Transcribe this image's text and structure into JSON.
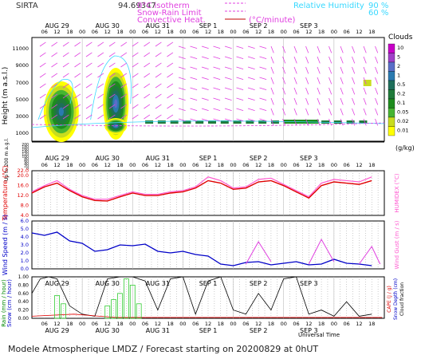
{
  "header": {
    "site": "SIRTA",
    "coords": "94.69347",
    "legend_isotherm": "0°C isotherm",
    "legend_snow_rain": "Snow-Rain Limit",
    "legend_convective": "Convective Heat.",
    "legend_convective_unit": "(°C/minute)",
    "rh_label": "Relative Humidity",
    "rh_values": [
      "90 %",
      "60 %"
    ]
  },
  "colorbar": {
    "title": "Clouds",
    "unit": "(g/kg)",
    "ticks": [
      "10",
      "5",
      "2",
      "1",
      "0.5",
      "0.2",
      "0.1",
      "0.05",
      "0.02",
      "0.01"
    ],
    "colors": [
      "#c800c8",
      "#a040c8",
      "#5a6ec8",
      "#2a7ab0",
      "#1e6e5a",
      "#1f7a3a",
      "#1e8c1e",
      "#46b432",
      "#c8dc1e",
      "#ffff00"
    ]
  },
  "days": [
    "AUG 29",
    "AUG 30",
    "AUG 31",
    "SEP  1",
    "SEP  2",
    "SEP  3"
  ],
  "hours": [
    "06",
    "12",
    "18",
    "00"
  ],
  "panel1": {
    "ylabel": "Height  (m a.s.l.)",
    "ylabel_lower": "Up to 200 m a.g.l.",
    "yticks": [
      "11000",
      "9000",
      "7000",
      "5000",
      "3000",
      "1000",
      "200",
      "180",
      "160",
      "140",
      "120",
      "100",
      "80",
      "60",
      "40",
      "20",
      "0"
    ]
  },
  "panel2": {
    "ylabel": "Temperature (°C)",
    "ylabel_right": "HUMIDEX (°C)",
    "yticks": [
      "22.0",
      "20.0",
      "16.0",
      "12.0",
      "8.0",
      "4.0"
    ]
  },
  "panel3": {
    "ylabel": "Wind Speed (m / s)",
    "ylabel_right": "Wind Gust (m / s)",
    "yticks": [
      "6.0",
      "5.0",
      "4.0",
      "3.0",
      "2.0",
      "1.0",
      "0.0"
    ]
  },
  "panel4": {
    "ylabel_left1": "Rain (mm / hour)",
    "ylabel_left2": "Snow (cm / hour)",
    "ylabel_right1": "CAPE (J / g)",
    "ylabel_right2": "Snow Depth (cm)",
    "ylabel_right3": "Cloud fraction",
    "yticks": [
      "1.00",
      "0.80",
      "0.60",
      "0.40",
      "0.20",
      "0.00"
    ]
  },
  "xlabel": "Universal Time",
  "footer": "Modele Atmospherique LMDZ / Forecast starting on 20200829 at 0hUT",
  "chart_data": [
    {
      "type": "line",
      "name": "temperature",
      "x_hours": [
        0,
        6,
        12,
        18,
        24,
        30,
        36,
        42,
        48,
        54,
        60,
        66,
        72,
        78,
        84,
        90,
        96,
        102,
        108,
        114,
        120,
        126,
        132,
        138,
        144,
        150,
        156,
        162
      ],
      "temperature": [
        13,
        15.5,
        17,
        14,
        11.5,
        10,
        9.8,
        11.5,
        13,
        12,
        12,
        13,
        13.5,
        15,
        18,
        17,
        14.5,
        15,
        17.5,
        18,
        16,
        13.5,
        11,
        16,
        17.5,
        17,
        16.5,
        18
      ],
      "humidex": [
        13.5,
        16,
        18,
        14.5,
        12,
        10.5,
        10.5,
        12,
        13.5,
        12.5,
        12.5,
        13.5,
        14,
        15.5,
        19.5,
        18,
        15,
        15.5,
        18.5,
        19,
        16.5,
        14,
        11.5,
        17,
        18.5,
        18,
        17.5,
        19.5
      ],
      "ylim": [
        4,
        22
      ]
    },
    {
      "type": "line",
      "name": "wind",
      "x_hours": [
        0,
        6,
        12,
        18,
        24,
        30,
        36,
        42,
        48,
        54,
        60,
        66,
        72,
        78,
        84,
        90,
        96,
        102,
        108,
        114,
        120,
        126,
        132,
        138,
        144,
        150,
        156,
        162
      ],
      "wind_speed": [
        4.5,
        4.2,
        4.6,
        3.5,
        3.2,
        2.2,
        2.4,
        3.0,
        2.9,
        3.1,
        2.2,
        2.0,
        2.2,
        1.8,
        1.6,
        0.6,
        0.4,
        0.8,
        0.9,
        0.5,
        0.7,
        0.9,
        0.5,
        0.6,
        1.2,
        0.7,
        0.6,
        0.4
      ],
      "wind_gust": [
        null,
        null,
        null,
        null,
        null,
        null,
        null,
        null,
        null,
        null,
        null,
        null,
        null,
        null,
        null,
        null,
        null,
        null,
        3.4,
        0.9,
        null,
        null,
        null,
        3.7,
        0.9,
        null,
        null,
        2.8
      ],
      "ylim": [
        0,
        6
      ]
    },
    {
      "type": "bar",
      "name": "rain",
      "x_hours": [
        12,
        15,
        36,
        39,
        42,
        45,
        48,
        51
      ],
      "rain": [
        0.55,
        0.35,
        0.3,
        0.45,
        0.6,
        0.95,
        0.8,
        0.35
      ],
      "cloud_fraction_x": [
        0,
        4,
        8,
        12,
        18,
        24,
        30,
        36,
        42,
        48,
        54,
        60,
        66,
        72,
        78,
        84,
        90,
        96,
        102,
        108,
        114,
        120,
        126,
        132,
        138,
        144,
        150,
        156,
        162
      ],
      "cloud_fraction": [
        0.6,
        0.95,
        1,
        0.95,
        0.3,
        0.1,
        0.05,
        0.95,
        1,
        1,
        0.9,
        0.2,
        0.95,
        1,
        0.1,
        0.9,
        1,
        0.2,
        0.1,
        0.6,
        0.2,
        0.95,
        1,
        0.1,
        0.2,
        0.05,
        0.4,
        0.05,
        0.1
      ],
      "ylim": [
        0,
        1
      ]
    }
  ]
}
